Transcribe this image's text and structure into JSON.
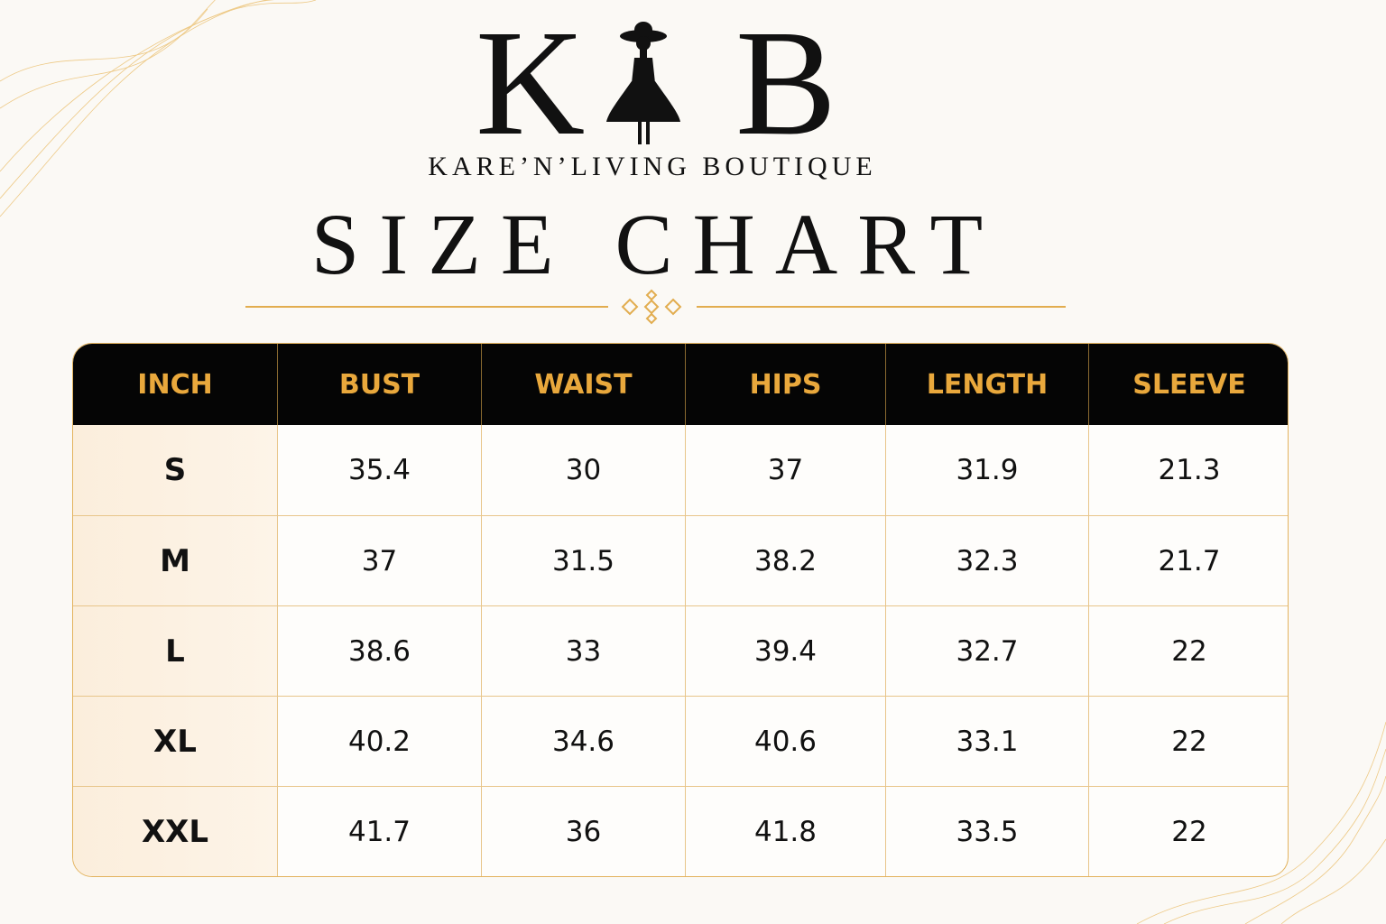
{
  "logo": {
    "left": "K",
    "right": "B"
  },
  "brand": "KARE’N’LIVING BOUTIQUE",
  "title": "SIZE CHART",
  "table": {
    "header": [
      "INCH",
      "BUST",
      "WAIST",
      "HIPS",
      "LENGTH",
      "SLEEVE"
    ],
    "rows": [
      [
        "S",
        "35.4",
        "30",
        "37",
        "31.9",
        "21.3"
      ],
      [
        "M",
        "37",
        "31.5",
        "38.2",
        "32.3",
        "21.7"
      ],
      [
        "L",
        "38.6",
        "33",
        "39.4",
        "32.7",
        "22"
      ],
      [
        "XL",
        "40.2",
        "34.6",
        "40.6",
        "33.1",
        "22"
      ],
      [
        "XXL",
        "41.7",
        "36",
        "41.8",
        "33.5",
        "22"
      ]
    ]
  }
}
